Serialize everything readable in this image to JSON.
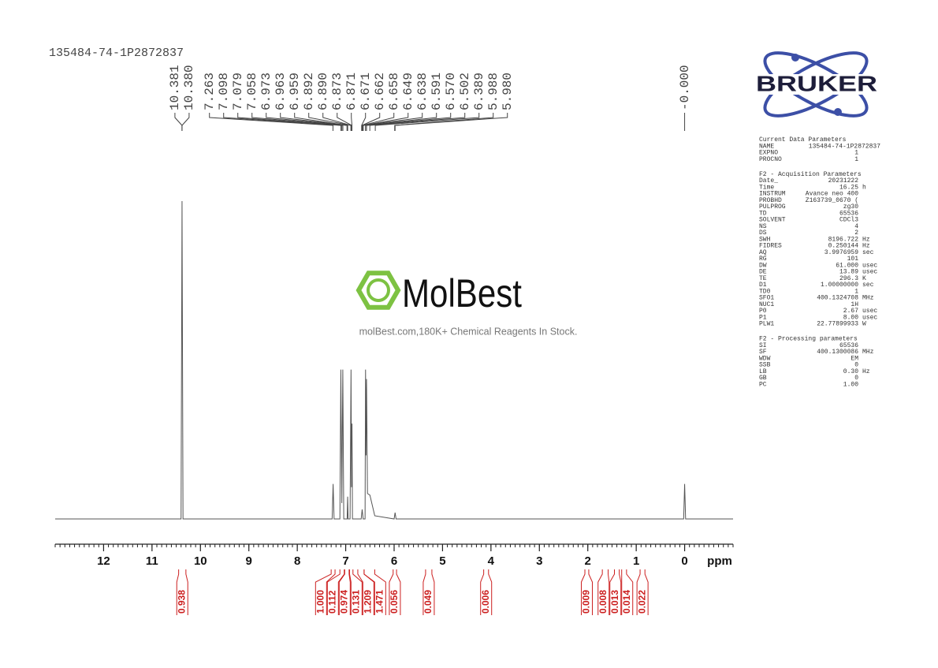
{
  "chart_data": {
    "type": "nmr",
    "title": "135484-74-1P2872837",
    "xlabel": "ppm",
    "xlim": [
      13,
      -1
    ],
    "xticks": [
      12,
      11,
      10,
      9,
      8,
      7,
      6,
      5,
      4,
      3,
      2,
      1,
      0
    ],
    "minor_step": 0.1,
    "ylim": [
      0,
      100
    ],
    "color": "#555555",
    "x": [
      13,
      10.4,
      10.38,
      10.36,
      7.28,
      7.26,
      7.24,
      7.12,
      7.1,
      7.08,
      7.06,
      7.04,
      6.97,
      6.96,
      6.95,
      6.91,
      6.89,
      6.88,
      6.87,
      6.86,
      6.68,
      6.66,
      6.64,
      6.6,
      6.59,
      6.58,
      6.57,
      6.55,
      6.5,
      6.4,
      6.0,
      5.98,
      5.96,
      0.02,
      0.0,
      -0.02,
      -1
    ],
    "values": [
      0,
      0,
      100,
      0,
      0,
      11,
      0,
      0,
      47,
      5,
      47,
      0,
      0,
      7,
      0,
      0,
      47,
      10,
      30,
      0,
      0,
      3,
      0,
      0,
      47,
      20,
      44,
      8,
      7.5,
      1,
      0,
      2,
      0,
      0,
      11,
      0,
      0
    ],
    "peak_color": "#444444",
    "peak_labels": [
      10.381,
      {
        "value": 10.38,
        "label": "10.380"
      },
      7.263,
      7.098,
      7.079,
      7.058,
      6.973,
      6.963,
      6.959,
      6.892,
      {
        "value": 6.89,
        "label": "6.890"
      },
      6.873,
      6.871,
      6.671,
      6.662,
      6.658,
      6.649,
      6.638,
      6.591,
      {
        "value": 6.57,
        "label": "6.570"
      },
      6.502,
      6.389,
      5.988,
      {
        "value": 5.98,
        "label": "5.980"
      },
      {
        "value": 0,
        "label": "-0.000"
      }
    ],
    "integral_color": "#cc1f1f",
    "integrals": [
      {
        "range": [
          10.45,
          10.3
        ],
        "value": 0.938
      },
      {
        "range": [
          7.3,
          7.22
        ],
        "value": 1,
        "label": "1.000"
      },
      {
        "range": [
          7.12,
          7.03
        ],
        "value": 0.112
      },
      {
        "range": [
          7.02,
          6.93
        ],
        "value": 0.974
      },
      {
        "range": [
          6.92,
          6.85
        ],
        "value": 0.131
      },
      {
        "range": [
          6.75,
          6.62
        ],
        "value": 1.209
      },
      {
        "range": [
          6.62,
          6.4
        ],
        "value": 1.471
      },
      {
        "range": [
          6.02,
          5.95
        ],
        "value": 0.056
      },
      {
        "range": [
          5.35,
          5.22
        ],
        "value": 0.049
      },
      {
        "range": [
          4.15,
          4.05
        ],
        "value": 0.006
      },
      {
        "range": [
          2.06,
          1.98
        ],
        "value": 0.009
      },
      {
        "range": [
          1.7,
          1.58
        ],
        "value": 0.008
      },
      {
        "range": [
          1.45,
          1.35
        ],
        "value": 0.013
      },
      {
        "range": [
          1.3,
          1.2
        ],
        "value": 0.014
      },
      {
        "range": [
          0.92,
          0.82
        ],
        "value": 0.022
      }
    ]
  },
  "watermark": {
    "name": "MolBest",
    "tagline": "molBest.com,180K+ Chemical Reagents In Stock."
  },
  "logo": "BRUKER",
  "parameters": [
    {
      "heading": "Current Data Parameters",
      "rows": [
        [
          "NAME",
          "135484-74-1P2872837"
        ],
        [
          "EXPNO",
          "1"
        ],
        [
          "PROCNO",
          "1"
        ]
      ]
    },
    {
      "heading": "F2 - Acquisition Parameters",
      "rows": [
        [
          "Date_",
          "20231222"
        ],
        [
          "Time",
          "16.25",
          "h"
        ],
        [
          "INSTRUM",
          "Avance neo 400"
        ],
        [
          "PROBHD",
          "Z163739_0670 ("
        ],
        [
          "PULPROG",
          "zg30"
        ],
        [
          "TD",
          "65536"
        ],
        [
          "SOLVENT",
          "CDCl3"
        ],
        [
          "NS",
          "4"
        ],
        [
          "DS",
          "2"
        ],
        [
          "SWH",
          "8196.722",
          "Hz"
        ],
        [
          "FIDRES",
          "0.250144",
          "Hz"
        ],
        [
          "AQ",
          "3.9976959",
          "sec"
        ],
        [
          "RG",
          "101"
        ],
        [
          "DW",
          "61.000",
          "usec"
        ],
        [
          "DE",
          "13.89",
          "usec"
        ],
        [
          "TE",
          "296.3",
          "K"
        ],
        [
          "D1",
          "1.00000000",
          "sec"
        ],
        [
          "TD0",
          "1"
        ],
        [
          "SFO1",
          "400.1324708",
          "MHz"
        ],
        [
          "NUC1",
          "1H"
        ],
        [
          "P0",
          "2.67",
          "usec"
        ],
        [
          "P1",
          "8.00",
          "usec"
        ],
        [
          "PLW1",
          "22.77899933",
          "W"
        ]
      ]
    },
    {
      "heading": "F2 - Processing parameters",
      "rows": [
        [
          "SI",
          "65536"
        ],
        [
          "SF",
          "400.1300086",
          "MHz"
        ],
        [
          "WDW",
          "EM"
        ],
        [
          "SSB",
          "0"
        ],
        [
          "LB",
          "0.30",
          "Hz"
        ],
        [
          "GB",
          "0"
        ],
        [
          "PC",
          "1.00"
        ]
      ]
    }
  ]
}
